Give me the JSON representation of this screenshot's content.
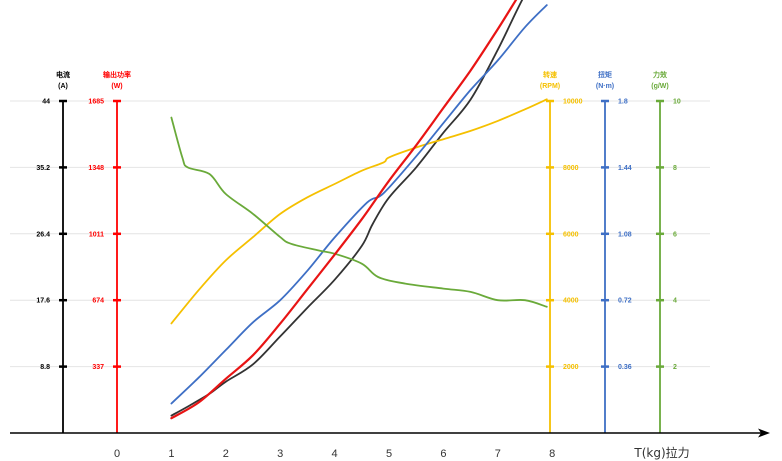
{
  "chart_data": {
    "type": "line",
    "xlabel": "T(kg)拉力",
    "x_ticks": [
      "0",
      "1",
      "2",
      "3",
      "4",
      "5",
      "6",
      "7",
      "8"
    ],
    "xlim": [
      0,
      8
    ],
    "grid": true,
    "y_axes": [
      {
        "key": "current",
        "name": "电流",
        "unit": "(A)",
        "color": "#000000",
        "min": 0,
        "max": 44,
        "ticks": [
          "8.8",
          "17.6",
          "26.4",
          "35.2",
          "44"
        ]
      },
      {
        "key": "power",
        "name": "输出功率",
        "unit": "(W)",
        "color": "#ff0000",
        "min": 0,
        "max": 1685,
        "ticks": [
          "337",
          "674",
          "1011",
          "1348",
          "1685"
        ]
      },
      {
        "key": "speed",
        "name": "转速",
        "unit": "(RPM)",
        "color": "#f5c000",
        "min": 0,
        "max": 10000,
        "ticks": [
          "2000",
          "4000",
          "6000",
          "8000",
          "10000"
        ]
      },
      {
        "key": "torque",
        "name": "扭矩",
        "unit": "(N·m)",
        "color": "#3e6fc5",
        "min": 0,
        "max": 1.8,
        "ticks": [
          "0.36",
          "0.72",
          "1.08",
          "1.44",
          "1.8"
        ]
      },
      {
        "key": "efficiency",
        "name": "力效",
        "unit": "(g/W)",
        "color": "#6aaa3a",
        "min": 0,
        "max": 10,
        "ticks": [
          "2",
          "4",
          "6",
          "8",
          "10"
        ]
      }
    ],
    "series": [
      {
        "axis": "current",
        "color": "#333333",
        "x": [
          1,
          1.3,
          1.7,
          2,
          2.5,
          3,
          3.5,
          4,
          4.5,
          4.7,
          5,
          5.5,
          6,
          6.5,
          7,
          7.5,
          7.9
        ],
        "y": [
          2.3,
          3.5,
          5.2,
          6.8,
          9.1,
          12.8,
          16.6,
          20.3,
          24.8,
          27.7,
          31.2,
          35.2,
          39.8,
          44.2,
          50.8,
          58.1,
          62.5
        ]
      },
      {
        "axis": "power",
        "color": "#e81414",
        "x": [
          1,
          1.5,
          2,
          2.5,
          3,
          3.5,
          4,
          4.5,
          5,
          5.5,
          6,
          6.5,
          7,
          7.5,
          7.9
        ],
        "y": [
          75,
          155,
          275,
          395,
          555,
          730,
          905,
          1085,
          1280,
          1460,
          1650,
          1840,
          2050,
          2270,
          2430
        ]
      },
      {
        "axis": "speed",
        "color": "#f5c000",
        "x": [
          1,
          1.5,
          2,
          2.5,
          3,
          3.5,
          4,
          4.5,
          4.9,
          5,
          5.5,
          6,
          6.5,
          7,
          7.5,
          7.9
        ],
        "y": [
          3300,
          4300,
          5200,
          5900,
          6600,
          7100,
          7500,
          7900,
          8150,
          8300,
          8600,
          8850,
          9100,
          9400,
          9750,
          10050
        ]
      },
      {
        "axis": "torque",
        "color": "#3e6fc5",
        "x": [
          1,
          1.5,
          2,
          2.5,
          3,
          3.5,
          4,
          4.6,
          4.9,
          5.5,
          6,
          6.5,
          7,
          7.5,
          7.9
        ],
        "y": [
          0.16,
          0.3,
          0.45,
          0.6,
          0.72,
          0.88,
          1.06,
          1.25,
          1.3,
          1.5,
          1.68,
          1.86,
          2.02,
          2.2,
          2.32
        ]
      },
      {
        "axis": "efficiency",
        "color": "#6aaa3a",
        "x": [
          1,
          1.2,
          1.3,
          1.7,
          2,
          2.5,
          3,
          3.2,
          3.7,
          4,
          4.5,
          4.8,
          5.3,
          6,
          6.5,
          7,
          7.5,
          7.9
        ],
        "y": [
          9.5,
          8.3,
          8.0,
          7.8,
          7.2,
          6.6,
          5.9,
          5.7,
          5.5,
          5.4,
          5.1,
          4.7,
          4.5,
          4.35,
          4.25,
          4.0,
          4.0,
          3.8
        ]
      }
    ]
  }
}
